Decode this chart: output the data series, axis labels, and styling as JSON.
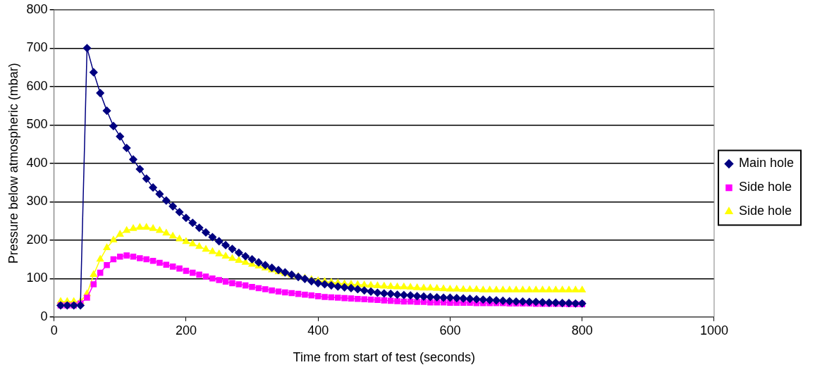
{
  "chart_data": {
    "type": "line",
    "xlabel": "Time from start of test (seconds)",
    "ylabel": "Pressure below atmospheric (mbar)",
    "x": [
      10,
      20,
      30,
      40,
      50,
      60,
      70,
      80,
      90,
      100,
      110,
      120,
      130,
      140,
      150,
      160,
      170,
      180,
      190,
      200,
      210,
      220,
      230,
      240,
      250,
      260,
      270,
      280,
      290,
      300,
      310,
      320,
      330,
      340,
      350,
      360,
      370,
      380,
      390,
      400,
      410,
      420,
      430,
      440,
      450,
      460,
      470,
      480,
      490,
      500,
      510,
      520,
      530,
      540,
      550,
      560,
      570,
      580,
      590,
      600,
      610,
      620,
      630,
      640,
      650,
      660,
      670,
      680,
      690,
      700,
      710,
      720,
      730,
      740,
      750,
      760,
      770,
      780,
      790,
      800
    ],
    "series": [
      {
        "name": "Main hole",
        "color": "#000080",
        "marker": "diamond",
        "values": [
          30,
          30,
          30,
          30,
          700,
          637,
          583,
          537,
          497,
          470,
          440,
          410,
          385,
          360,
          337,
          320,
          303,
          288,
          273,
          258,
          245,
          232,
          220,
          208,
          197,
          187,
          177,
          167,
          158,
          150,
          142,
          135,
          128,
          122,
          116,
          110,
          104,
          99,
          93,
          88,
          85,
          82,
          79,
          77,
          75,
          72,
          69,
          66,
          63,
          61,
          60,
          58,
          57,
          56,
          54,
          53,
          52,
          51,
          50,
          50,
          49,
          48,
          47,
          46,
          45,
          44,
          43,
          42,
          41,
          40,
          40,
          39,
          39,
          38,
          37,
          37,
          36,
          36,
          35,
          35
        ]
      },
      {
        "name": "Side hole",
        "color": "#ff00ff",
        "marker": "square",
        "values": [
          30,
          30,
          30,
          35,
          50,
          85,
          115,
          135,
          150,
          157,
          160,
          157,
          153,
          150,
          146,
          141,
          136,
          131,
          126,
          120,
          115,
          110,
          105,
          100,
          96,
          92,
          88,
          85,
          82,
          78,
          75,
          72,
          69,
          66,
          64,
          62,
          60,
          58,
          56,
          54,
          52,
          51,
          50,
          49,
          48,
          47,
          46,
          45,
          44,
          43,
          42,
          41,
          40,
          40,
          39,
          39,
          38,
          38,
          38,
          37,
          37,
          37,
          37,
          36,
          36,
          36,
          36,
          36,
          35,
          35,
          35,
          35,
          34,
          34,
          34,
          34,
          34,
          33,
          33,
          33
        ]
      },
      {
        "name": "Side hole",
        "color": "#ffff00",
        "marker": "triangle",
        "values": [
          40,
          40,
          40,
          40,
          60,
          110,
          150,
          180,
          200,
          215,
          225,
          230,
          233,
          233,
          230,
          225,
          218,
          210,
          203,
          196,
          190,
          183,
          176,
          170,
          164,
          158,
          152,
          147,
          142,
          137,
          132,
          127,
          122,
          117,
          113,
          109,
          105,
          101,
          97,
          94,
          92,
          90,
          88,
          86,
          85,
          84,
          83,
          82,
          81,
          80,
          79,
          78,
          78,
          77,
          76,
          75,
          75,
          74,
          73,
          72,
          72,
          71,
          71,
          71,
          70,
          70,
          70,
          70,
          70,
          70,
          70,
          70,
          70,
          70,
          70,
          70,
          70,
          70,
          70,
          70
        ]
      }
    ],
    "xlim": [
      0,
      1000
    ],
    "xticks": [
      0,
      200,
      400,
      600,
      800,
      1000
    ],
    "ylim": [
      0,
      800
    ],
    "yticks": [
      0,
      100,
      200,
      300,
      400,
      500,
      600,
      700,
      800
    ],
    "grid": "y",
    "legend": "right",
    "line_style": "solid"
  }
}
